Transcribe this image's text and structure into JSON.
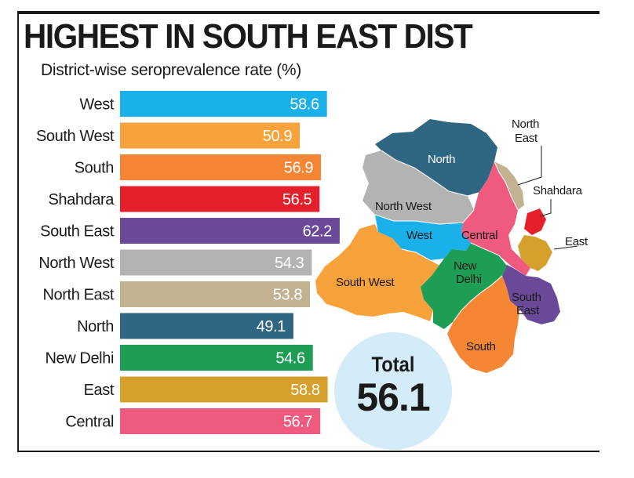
{
  "header": {
    "title": "HIGHEST IN SOUTH EAST DIST",
    "subtitle": "District-wise seroprevalence rate (%)"
  },
  "chart_data": {
    "type": "bar",
    "orientation": "horizontal",
    "categories": [
      "West",
      "South West",
      "South",
      "Shahdara",
      "South East",
      "North West",
      "North East",
      "North",
      "New Delhi",
      "East",
      "Central"
    ],
    "values": [
      58.6,
      50.9,
      56.9,
      56.5,
      62.2,
      54.3,
      53.8,
      49.1,
      54.6,
      58.8,
      56.7
    ],
    "colors": [
      "#1ab0ea",
      "#f7a23a",
      "#f58634",
      "#e4202a",
      "#6a4a98",
      "#b3b3b3",
      "#c3b291",
      "#2f6783",
      "#1e9e55",
      "#d5a12c",
      "#ef5b7f"
    ],
    "grid": false,
    "data_labels": true
  },
  "total": {
    "label": "Total",
    "value": "56.1"
  },
  "map": {
    "labels": [
      "North",
      "North East",
      "Shahdara",
      "North West",
      "West",
      "Central",
      "East",
      "New Delhi",
      "South West",
      "South East",
      "South"
    ],
    "colors": {
      "North": "#2f6783",
      "North East": "#c3b291",
      "Shahdara": "#e4202a",
      "North West": "#b3b3b3",
      "West": "#1ab0ea",
      "Central": "#ef5b7f",
      "East": "#d5a12c",
      "New Delhi": "#1e9e55",
      "South West": "#f7a23a",
      "South East": "#6a4a98",
      "South": "#f58634"
    }
  }
}
